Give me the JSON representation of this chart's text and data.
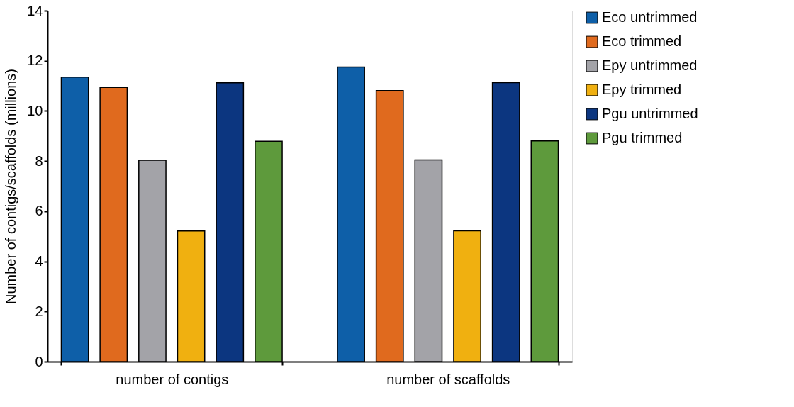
{
  "chart_data": {
    "type": "bar",
    "ylabel": "Number of contigs/scaffolds (millions)",
    "categories": [
      "number of contigs",
      "number of scaffolds"
    ],
    "series": [
      {
        "name": "Eco untrimmed",
        "color": "#0e5fa8",
        "values": [
          11.35,
          11.75
        ]
      },
      {
        "name": "Eco trimmed",
        "color": "#e06a1e",
        "values": [
          10.94,
          10.81
        ]
      },
      {
        "name": "Epy untrimmed",
        "color": "#a3a3a8",
        "values": [
          8.03,
          8.05
        ]
      },
      {
        "name": "Epy trimmed",
        "color": "#f0b010",
        "values": [
          5.21,
          5.22
        ]
      },
      {
        "name": "Pgu untrimmed",
        "color": "#0c3680",
        "values": [
          11.12,
          11.13
        ]
      },
      {
        "name": "Pgu trimmed",
        "color": "#5e9a3c",
        "values": [
          8.79,
          8.8
        ]
      }
    ],
    "ylim": [
      0,
      14
    ],
    "yticks": [
      0,
      2,
      4,
      6,
      8,
      10,
      12,
      14
    ],
    "grid": false,
    "legend": "right"
  }
}
